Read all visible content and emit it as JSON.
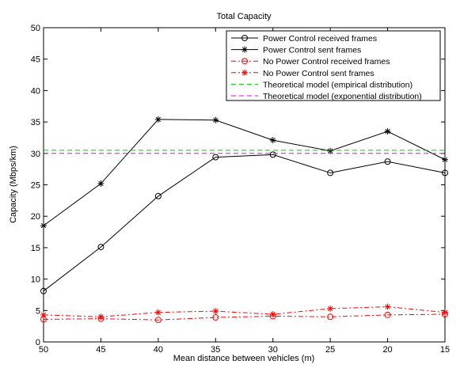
{
  "chart_data": {
    "type": "line",
    "title": "Total Capacity",
    "xlabel": "Mean distance between vehicles (m)",
    "ylabel": "Capacity (Mbps/km)",
    "x": [
      50,
      45,
      40,
      35,
      30,
      25,
      20,
      15
    ],
    "x_ticks": [
      "50",
      "45",
      "40",
      "35",
      "30",
      "25",
      "20",
      "15"
    ],
    "x_reversed": true,
    "xlim": [
      50,
      15
    ],
    "ylim": [
      0,
      50
    ],
    "y_ticks": [
      "0",
      "5",
      "10",
      "15",
      "20",
      "25",
      "30",
      "35",
      "40",
      "45",
      "50"
    ],
    "grid": false,
    "legend_position": "top-right",
    "series": [
      {
        "name": "Power Control received frames",
        "values": [
          8.1,
          15.1,
          23.2,
          29.4,
          29.8,
          26.9,
          28.7,
          26.9
        ],
        "color": "#000000",
        "line_style": "solid",
        "marker": "circle"
      },
      {
        "name": "Power Control sent frames",
        "values": [
          18.5,
          25.2,
          35.4,
          35.3,
          32.1,
          30.4,
          33.5,
          29.0
        ],
        "color": "#000000",
        "line_style": "solid",
        "marker": "asterisk"
      },
      {
        "name": "No Power Control received frames",
        "values": [
          3.6,
          3.7,
          3.5,
          3.9,
          4.1,
          4.0,
          4.3,
          4.4
        ],
        "color": "#ff0000",
        "line_style": "dashdot",
        "marker": "circle"
      },
      {
        "name": "No Power Control sent frames",
        "values": [
          4.3,
          4.0,
          4.7,
          4.9,
          4.4,
          5.3,
          5.6,
          4.7
        ],
        "color": "#ff0000",
        "line_style": "dashdot",
        "marker": "asterisk"
      },
      {
        "name": "Theoretical model (empirical distribution)",
        "values": [
          30.5,
          30.5,
          30.5,
          30.5,
          30.5,
          30.5,
          30.5,
          30.5
        ],
        "color": "#00cc00",
        "line_style": "dashed",
        "marker": "none"
      },
      {
        "name": "Theoretical model (exponential distribution)",
        "values": [
          30.0,
          30.0,
          30.0,
          30.0,
          30.0,
          30.0,
          30.0,
          30.0
        ],
        "color": "#ee00ee",
        "line_style": "dashed",
        "marker": "none"
      }
    ]
  }
}
